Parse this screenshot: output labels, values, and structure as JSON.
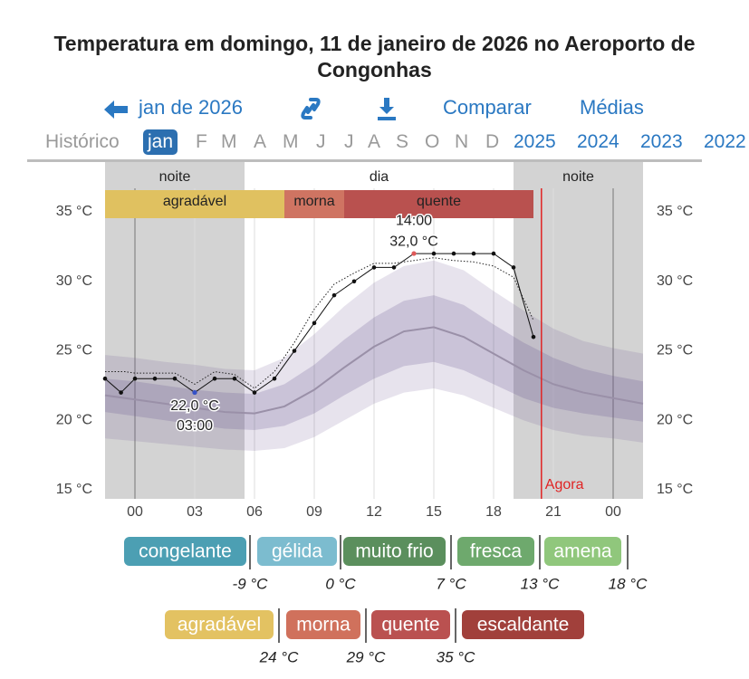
{
  "header": {
    "title": "Temperatura em domingo, 11 de janeiro de 2026 no Aeroporto de Congonhas"
  },
  "nav": {
    "back": "jan de 2026",
    "compare": "Comparar",
    "averages": "Médias"
  },
  "months": {
    "history": "Histórico",
    "items": [
      "jan",
      "F",
      "M",
      "A",
      "M",
      "J",
      "J",
      "A",
      "S",
      "O",
      "N",
      "D"
    ],
    "selected": 0,
    "years": [
      "2025",
      "2024",
      "2023",
      "2022"
    ]
  },
  "chart_data": {
    "type": "line",
    "xlim": [
      -1.5,
      25.5
    ],
    "xticks": [
      {
        "value": 0,
        "label": "00"
      },
      {
        "value": 3,
        "label": "03"
      },
      {
        "value": 6,
        "label": "06"
      },
      {
        "value": 9,
        "label": "09"
      },
      12,
      15,
      18,
      21,
      {
        "value": 24,
        "label": "00"
      }
    ],
    "ylim": [
      14.35,
      38.65
    ],
    "yticks": [
      {
        "value": 15,
        "label": "15 °C"
      },
      {
        "value": 20,
        "label": "20 °C"
      },
      {
        "value": 25,
        "label": "25 °C"
      },
      {
        "value": 30,
        "label": "30 °C"
      },
      {
        "value": 35,
        "label": "35 °C"
      }
    ],
    "grid": "x",
    "periods": [
      {
        "label": "noite",
        "start": -1.5,
        "end": 5.5,
        "color": "#d3d3d3"
      },
      {
        "label": "dia",
        "start": 5.5,
        "end": 19,
        "color": "#ffffff"
      },
      {
        "label": "noite",
        "start": 19,
        "end": 25.5,
        "color": "#d3d3d3"
      }
    ],
    "comfort": [
      {
        "label": "agradável",
        "start": -1.5,
        "end": 7.5,
        "color": "#e0c160"
      },
      {
        "label": "morna",
        "start": 7.5,
        "end": 10.5,
        "color": "#cf7462"
      },
      {
        "label": "quente",
        "start": 10.5,
        "end": 20,
        "color": "#b9514f"
      }
    ],
    "now": {
      "x": 20.4,
      "label": "Agora",
      "color": "#e02424"
    },
    "series": [
      {
        "kind": "band",
        "color": "rgba(110,90,150,0.17)",
        "x": [
          -1.5,
          0,
          1.5,
          3,
          4.5,
          6,
          7.5,
          9,
          10.5,
          12,
          13.5,
          15,
          16.5,
          18,
          19.5,
          21,
          22.5,
          24,
          25.5
        ],
        "low": [
          18.7,
          18.5,
          18.3,
          18.1,
          17.9,
          17.8,
          18.0,
          18.8,
          20.0,
          21.2,
          22.0,
          22.3,
          21.8,
          20.9,
          20.0,
          19.3,
          18.9,
          18.7,
          18.4
        ],
        "high": [
          24.7,
          24.5,
          24.2,
          24.0,
          23.7,
          23.6,
          24.5,
          26.2,
          28.2,
          29.9,
          31.1,
          31.5,
          30.8,
          29.3,
          27.9,
          26.6,
          25.7,
          25.2,
          24.8
        ]
      },
      {
        "kind": "band",
        "color": "rgba(100,80,140,0.22)",
        "x": [
          -1.5,
          0,
          1.5,
          3,
          4.5,
          6,
          7.5,
          9,
          10.5,
          12,
          13.5,
          15,
          16.5,
          18,
          19.5,
          21,
          22.5,
          24,
          25.5
        ],
        "low": [
          20.6,
          20.3,
          20.0,
          19.7,
          19.4,
          19.3,
          19.6,
          20.5,
          21.8,
          23.0,
          23.9,
          24.2,
          23.6,
          22.6,
          21.6,
          20.9,
          20.5,
          20.2,
          19.9
        ],
        "high": [
          23.0,
          22.8,
          22.5,
          22.2,
          22.0,
          21.9,
          22.6,
          24.0,
          25.8,
          27.4,
          28.6,
          29.0,
          28.3,
          26.9,
          25.6,
          24.5,
          23.7,
          23.2,
          22.8
        ]
      },
      {
        "kind": "line",
        "color": "#9a90a8",
        "x": [
          -1.5,
          0,
          1.5,
          3,
          4.5,
          6,
          7.5,
          9,
          10.5,
          12,
          13.5,
          15,
          16.5,
          18,
          19.5,
          21,
          22.5,
          24,
          25.5
        ],
        "values": [
          21.8,
          21.5,
          21.2,
          20.9,
          20.6,
          20.5,
          21.0,
          22.2,
          23.8,
          25.3,
          26.4,
          26.7,
          26.0,
          24.8,
          23.6,
          22.6,
          22.0,
          21.6,
          21.2
        ]
      },
      {
        "kind": "dotted",
        "color": "#222222",
        "x": [
          -1.5,
          -0.5,
          0,
          1,
          2,
          3,
          4,
          5,
          6,
          7,
          8,
          9,
          10,
          11,
          12,
          13,
          14,
          15,
          16,
          17,
          18,
          19,
          20
        ],
        "values": [
          23.5,
          23.5,
          23.4,
          23.4,
          23.4,
          22.6,
          23.5,
          23.3,
          22.3,
          23.5,
          25.6,
          28,
          29.8,
          30.6,
          31.3,
          31.3,
          31.5,
          31.7,
          31.5,
          31.4,
          31.1,
          30.3,
          27.2
        ]
      },
      {
        "kind": "observed",
        "color": "#111111",
        "x": [
          -1.5,
          -0.7,
          0,
          1,
          2,
          3,
          4,
          5,
          6,
          7,
          8,
          9,
          10,
          11,
          12,
          13,
          14,
          15,
          16,
          17,
          18,
          19,
          20
        ],
        "values": [
          23,
          22,
          23,
          23,
          23,
          22,
          23,
          23,
          22,
          23,
          25,
          27,
          29,
          30,
          31,
          31,
          32,
          32,
          32,
          32,
          32,
          31,
          26
        ]
      }
    ],
    "annotations": [
      {
        "x": 3,
        "y": 22,
        "lines": [
          "22,0 °C",
          "03:00"
        ],
        "color": "#3552c8",
        "position": "below"
      },
      {
        "x": 14,
        "y": 32,
        "lines": [
          "14:00",
          "32,0 °C"
        ],
        "color": "#e05a5a",
        "position": "above"
      }
    ]
  },
  "legend": {
    "rows": [
      [
        {
          "label": "congelante",
          "color": "#4c9fb3"
        },
        {
          "label": "gélida",
          "color": "#7cbccf"
        },
        {
          "label": "muito frio",
          "color": "#5b8f5d"
        },
        {
          "label": "fresca",
          "color": "#6ea96d"
        },
        {
          "label": "amena",
          "color": "#90c77c"
        }
      ],
      [
        {
          "label": "agradável",
          "color": "#e3c262"
        },
        {
          "label": "morna",
          "color": "#d0715c"
        },
        {
          "label": "quente",
          "color": "#ba5150"
        },
        {
          "label": "escaldante",
          "color": "#a1403b"
        }
      ]
    ],
    "thresholds": [
      [
        "-9 °C",
        "0 °C",
        "7 °C",
        "13 °C",
        "18 °C"
      ],
      [
        "24 °C",
        "29 °C",
        "35 °C"
      ]
    ]
  }
}
